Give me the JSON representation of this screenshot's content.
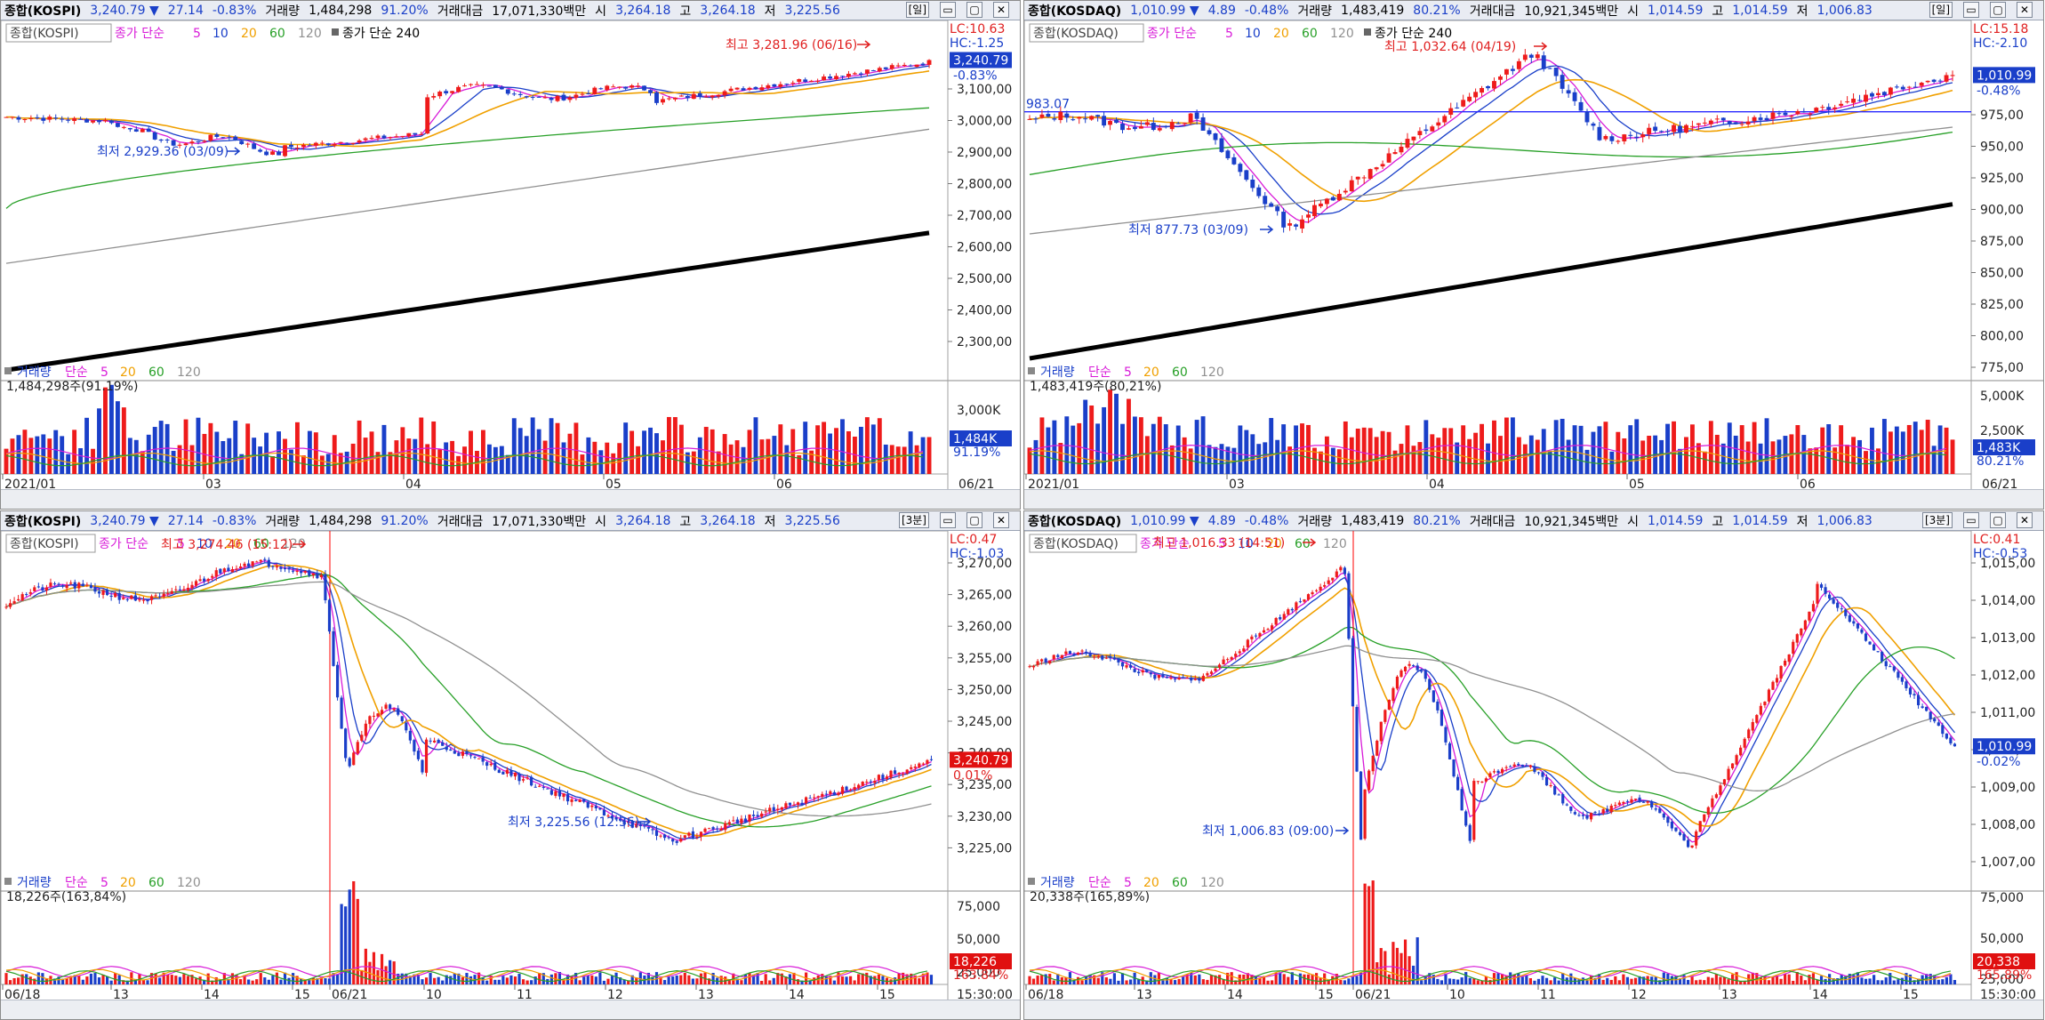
{
  "panels": [
    {
      "id": "kospi-daily",
      "header": {
        "name": "종합(KOSPI)",
        "price": "3,240.79 ▼",
        "change": "27.14",
        "pct": "-0.83%",
        "vol_label": "거래량",
        "vol": "1,484,298",
        "vol_pct": "91.20%",
        "amt_label": "거래대금",
        "amt": "17,071,330백만",
        "open_label": "시",
        "open": "3,264.18",
        "high_label": "고",
        "high": "3,264.18",
        "low_label": "저",
        "low": "3,225.56",
        "period": "[일]"
      },
      "legend": {
        "name": "종합(KOSPI)",
        "ma_label": "종가 단순",
        "ma": [
          "5",
          "10",
          "20",
          "60",
          "120"
        ],
        "ma240": "종가 단순 240"
      },
      "vol_legend": {
        "label": "거래량",
        "ma_label": "단순",
        "ma": [
          "5",
          "20",
          "60",
          "120"
        ],
        "value": "1,484,298주(91.19%)"
      },
      "lc": "LC:10.63",
      "hc": "HC:-1.25",
      "price_tag": "3,240.79",
      "pct_tag": "-0.83%",
      "vol_tag": "1,484K",
      "vol_pct_tag": "91.19%",
      "annotations": {
        "high": "최고 3,281.96 (06/16)",
        "low": "최저 2,929.36 (03/09)"
      },
      "y_ticks": [
        "3,100,00",
        "3,000,00",
        "2,900,00",
        "2,800,00",
        "2,700,00",
        "2,600,00",
        "2,500,00",
        "2,400,00",
        "2,300,00"
      ],
      "vol_ticks": [
        "3,000K",
        "2,000K"
      ],
      "x_labels": [
        "2021/01",
        "03",
        "04",
        "05",
        "06"
      ],
      "x_right": "06/21",
      "footer_right": "",
      "chart_data": {
        "type": "candlestick",
        "ylim": [
          2250,
          3300
        ],
        "ma_colors": {
          "5": "#d81bd8",
          "10": "#1a3fc9",
          "20": "#f0a000",
          "60": "#28a028",
          "120": "#909090",
          "240": "#000000"
        }
      }
    },
    {
      "id": "kosdaq-daily",
      "header": {
        "name": "종합(KOSDAQ)",
        "price": "1,010.99 ▼",
        "change": "4.89",
        "pct": "-0.48%",
        "vol_label": "거래량",
        "vol": "1,483,419",
        "vol_pct": "80.21%",
        "amt_label": "거래대금",
        "amt": "10,921,345백만",
        "open_label": "시",
        "open": "1,014.59",
        "high_label": "고",
        "high": "1,014.59",
        "low_label": "저",
        "low": "1,006.83",
        "period": "[일]"
      },
      "legend": {
        "name": "종합(KOSDAQ)",
        "ma_label": "종가 단순",
        "ma": [
          "5",
          "10",
          "20",
          "60",
          "120"
        ],
        "ma240": "종가 단순 240"
      },
      "vol_legend": {
        "label": "거래량",
        "ma_label": "단순",
        "ma": [
          "5",
          "20",
          "60",
          "120"
        ],
        "value": "1,483,419주(80,21%)"
      },
      "lc": "LC:15.18",
      "hc": "HC:-2.10",
      "price_tag": "1,010.99",
      "pct_tag": "-0.48%",
      "vol_tag": "1,483K",
      "vol_pct_tag": "80.21%",
      "annotations": {
        "high": "최고 1,032.64 (04/19)",
        "low": "최저 877.73 (03/09)",
        "left_label": "983.07"
      },
      "y_ticks": [
        "975,00",
        "950,00",
        "925,00",
        "900,00",
        "875,00",
        "850,00",
        "825,00",
        "800,00",
        "775,00"
      ],
      "vol_ticks": [
        "5,000K",
        "2,500K"
      ],
      "x_labels": [
        "2021/01",
        "03",
        "04",
        "05",
        "06"
      ],
      "x_right": "06/21",
      "footer_right": "",
      "chart_data": {
        "type": "candlestick",
        "ylim": [
          760,
          1045
        ]
      }
    },
    {
      "id": "kospi-3min",
      "header": {
        "name": "종합(KOSPI)",
        "price": "3,240.79 ▼",
        "change": "27.14",
        "pct": "-0.83%",
        "vol_label": "거래량",
        "vol": "1,484,298",
        "vol_pct": "91.20%",
        "amt_label": "거래대금",
        "amt": "17,071,330백만",
        "open_label": "시",
        "open": "3,264.18",
        "high_label": "고",
        "high": "3,264.18",
        "low_label": "저",
        "low": "3,225.56",
        "period": "[3분]"
      },
      "legend": {
        "name": "종합(KOSPI)",
        "ma_label": "종가 단순",
        "ma": [
          "5",
          "10",
          "20",
          "60",
          "120"
        ],
        "ma240": ""
      },
      "vol_legend": {
        "label": "거래량",
        "ma_label": "단순",
        "ma": [
          "5",
          "20",
          "60",
          "120"
        ],
        "value": "18,226주(163,84%)"
      },
      "lc": "LC:0.47",
      "hc": "HC:-1.03",
      "price_tag": "3,240.79",
      "pct_tag": "0.01%",
      "vol_tag": "18,226",
      "vol_pct_tag": "163.84%",
      "annotations": {
        "high": "최고 3,274.46 (15:12)",
        "low": "최저 3,225.56 (12:36)"
      },
      "y_ticks": [
        "3,270,00",
        "3,265,00",
        "3,260,00",
        "3,255,00",
        "3,250,00",
        "3,245,00",
        "3,240,00",
        "3,235,00",
        "3,230,00",
        "3,225,00"
      ],
      "vol_ticks": [
        "75,000",
        "50,000",
        "25,000"
      ],
      "x_labels": [
        "06/18",
        "13",
        "14",
        "15",
        "06/21",
        "10",
        "11",
        "12",
        "13",
        "14",
        "15"
      ],
      "x_right": "",
      "footer_right": "15:30:00",
      "chart_data": {
        "type": "candlestick",
        "ylim": [
          3222,
          3276
        ]
      }
    },
    {
      "id": "kosdaq-3min",
      "header": {
        "name": "종합(KOSDAQ)",
        "price": "1,010.99 ▼",
        "change": "4.89",
        "pct": "-0.48%",
        "vol_label": "거래량",
        "vol": "1,483,419",
        "vol_pct": "80.21%",
        "amt_label": "거래대금",
        "amt": "10,921,345백만",
        "open_label": "시",
        "open": "1,014.59",
        "high_label": "고",
        "high": "1,014.59",
        "low_label": "저",
        "low": "1,006.83",
        "period": "[3분]"
      },
      "legend": {
        "name": "종합(KOSDAQ)",
        "ma_label": "종가 단순",
        "ma": [
          "5",
          "10",
          "20",
          "60",
          "120"
        ],
        "ma240": ""
      },
      "vol_legend": {
        "label": "거래량",
        "ma_label": "단순",
        "ma": [
          "5",
          "20",
          "60",
          "120"
        ],
        "value": "20,338주(165,89%)"
      },
      "lc": "LC:0.41",
      "hc": "HC:-0.53",
      "price_tag": "1,010.99",
      "pct_tag": "-0.02%",
      "vol_tag": "20,338",
      "vol_pct_tag": "165.89%",
      "annotations": {
        "high": "최고 1,016.33 (14:51)",
        "low": "최저 1,006.83 (09:00)"
      },
      "y_ticks": [
        "1,015,00",
        "1,014,00",
        "1,013,00",
        "1,012,00",
        "1,011,00",
        "1,010,00",
        "1,009,00",
        "1,008,00",
        "1,007,00"
      ],
      "vol_ticks": [
        "75,000",
        "50,000",
        "25,000"
      ],
      "x_labels": [
        "06/18",
        "13",
        "14",
        "15",
        "06/21",
        "10",
        "11",
        "12",
        "13",
        "14",
        "15"
      ],
      "x_right": "",
      "footer_right": "15:30:00",
      "chart_data": {
        "type": "candlestick",
        "ylim": [
          1006.5,
          1016.6
        ]
      }
    }
  ]
}
